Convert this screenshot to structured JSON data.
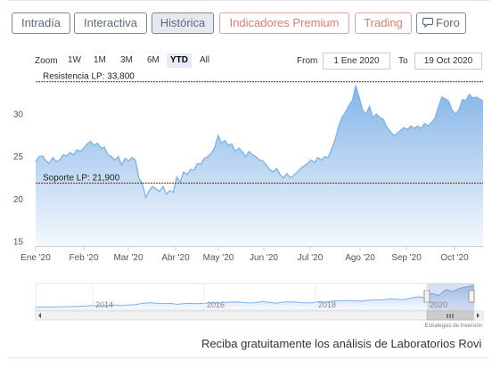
{
  "tabs": [
    {
      "label": "Intradía",
      "style": "gray"
    },
    {
      "label": "Interactiva",
      "style": "gray"
    },
    {
      "label": "Histórica",
      "style": "active"
    },
    {
      "label": "Indicadores Premium",
      "style": "red"
    },
    {
      "label": "Trading",
      "style": "red"
    },
    {
      "label": "Foro",
      "style": "gray",
      "icon": "chat-bubble-icon"
    }
  ],
  "zoom": {
    "label": "Zoom",
    "options": [
      "1W",
      "1M",
      "3M",
      "6M",
      "YTD",
      "All"
    ],
    "selected": "YTD"
  },
  "range": {
    "from_label": "From",
    "from_value": "1 Ene 2020",
    "to_label": "To",
    "to_value": "19 Oct 2020"
  },
  "chart_data": {
    "type": "area",
    "title": "",
    "xlabel": "",
    "ylabel": "",
    "ylim": [
      14.5,
      34.4
    ],
    "yticks": [
      15,
      20,
      25,
      30
    ],
    "xticks": [
      "Ene '20",
      "Feb '20",
      "Mar '20",
      "Abr '20",
      "May '20",
      "Jun '20",
      "Jul '20",
      "Ago '20",
      "Sep '20",
      "Oct '20"
    ],
    "grid": false,
    "legend": "none",
    "series": [
      {
        "values": [
          24.4,
          25.0,
          25.1,
          24.5,
          24.2,
          24.9,
          24.4,
          24.6,
          25.2,
          25.1,
          25.5,
          25.2,
          25.8,
          25.6,
          26.0,
          26.5,
          26.8,
          26.3,
          26.6,
          26.0,
          26.1,
          25.2,
          25.0,
          24.6,
          25.0,
          24.0,
          24.8,
          24.5,
          24.9,
          24.6,
          22.5,
          21.8,
          20.2,
          21.0,
          21.5,
          21.2,
          20.9,
          21.5,
          20.6,
          21.0,
          20.8,
          22.6,
          22.0,
          23.2,
          22.9,
          23.5,
          23.4,
          24.2,
          24.1,
          24.8,
          25.0,
          25.4,
          26.0,
          27.5,
          26.6,
          26.9,
          26.3,
          26.5,
          25.6,
          26.0,
          25.6,
          25.0,
          25.6,
          25.2,
          25.0,
          24.6,
          24.5,
          24.0,
          23.5,
          23.2,
          23.6,
          22.9,
          22.5,
          23.0,
          22.5,
          22.8,
          23.2,
          23.6,
          23.9,
          24.2,
          24.6,
          24.3,
          24.9,
          24.6,
          25.0,
          24.9,
          25.9,
          27.0,
          28.5,
          29.6,
          30.2,
          31.0,
          31.6,
          33.3,
          32.0,
          30.5,
          30.0,
          30.9,
          29.6,
          30.0,
          29.6,
          29.4,
          28.5,
          28.0,
          27.5,
          27.7,
          28.1,
          28.4,
          28.2,
          28.6,
          28.3,
          28.6,
          28.3,
          28.9,
          28.6,
          29.0,
          29.5,
          30.8,
          32.0,
          31.8,
          31.5,
          30.5,
          30.0,
          30.5,
          31.7,
          31.6,
          32.3,
          31.9,
          32.0,
          31.8,
          31.5
        ],
        "color": "#7eb1e6"
      }
    ],
    "annotations": [
      {
        "label": "Resistencia LP: 33,800",
        "value": 33.8,
        "color": "#333333",
        "style": "dashed"
      },
      {
        "label": "Soporte LP: 21,900",
        "value": 21.9,
        "color": "#8b1a1a",
        "style": "dashed"
      }
    ],
    "navigator": {
      "labels": [
        "2014",
        "2016",
        "2018",
        "2020"
      ]
    },
    "credit": "Estrategias de Inversión"
  },
  "promo_text": "Reciba gratuitamente los análisis de Laboratorios Rovi"
}
